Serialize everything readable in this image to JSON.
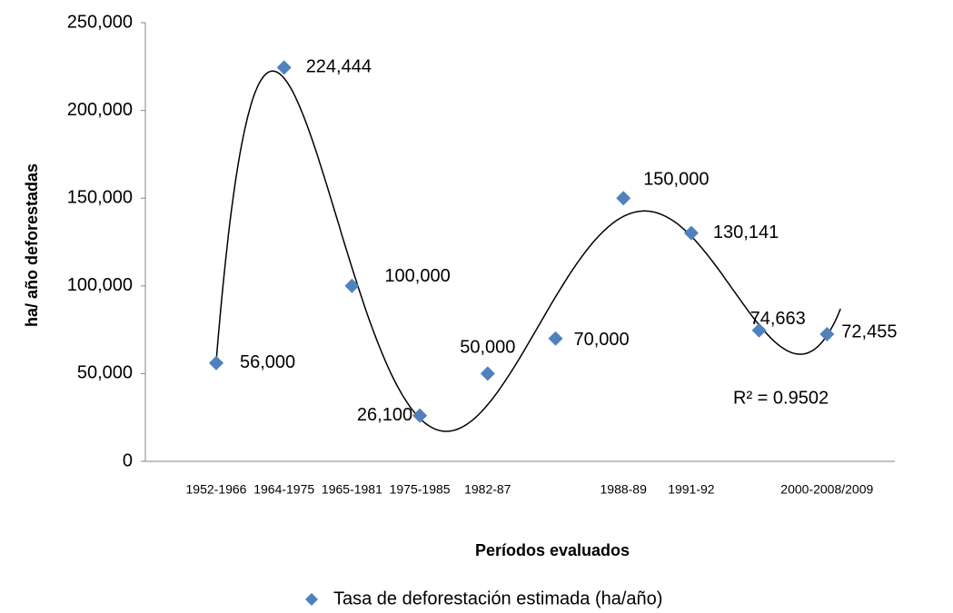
{
  "chart_data": {
    "type": "scatter",
    "categories": [
      "1952-1966",
      "1964-1975",
      "1965-1981",
      "1975-1985",
      "1982-87",
      null,
      "1988-89",
      "1991-92",
      null,
      "2000-2008/2009"
    ],
    "series": [
      {
        "name": "Tasa de deforestación estimada (ha/año)",
        "color": "#4f81bd",
        "values": [
          56000,
          224444,
          100000,
          26100,
          50000,
          70000,
          150000,
          130141,
          74663,
          72455
        ],
        "value_labels": [
          "56,000",
          "224,444",
          "100,000",
          "26,100",
          "50,000",
          "70,000",
          "150,000",
          "130,141",
          "74,663",
          "72,455"
        ]
      }
    ],
    "trendline": {
      "type": "polynomial",
      "order": 6,
      "label": "R² = 0.9502"
    },
    "ylim": [
      0,
      250000
    ],
    "yticks": [
      0,
      {
        "value": 50000,
        "label": "50,000"
      },
      {
        "value": 100000,
        "label": "100,000"
      },
      {
        "value": 150000,
        "label": "150,000"
      },
      {
        "value": 200000,
        "label": "200,000"
      },
      {
        "value": 250000,
        "label": "250,000"
      }
    ],
    "xlabel": "Períodos evaluados",
    "ylabel": "ha/ año deforestadas",
    "legend": "bottom"
  }
}
